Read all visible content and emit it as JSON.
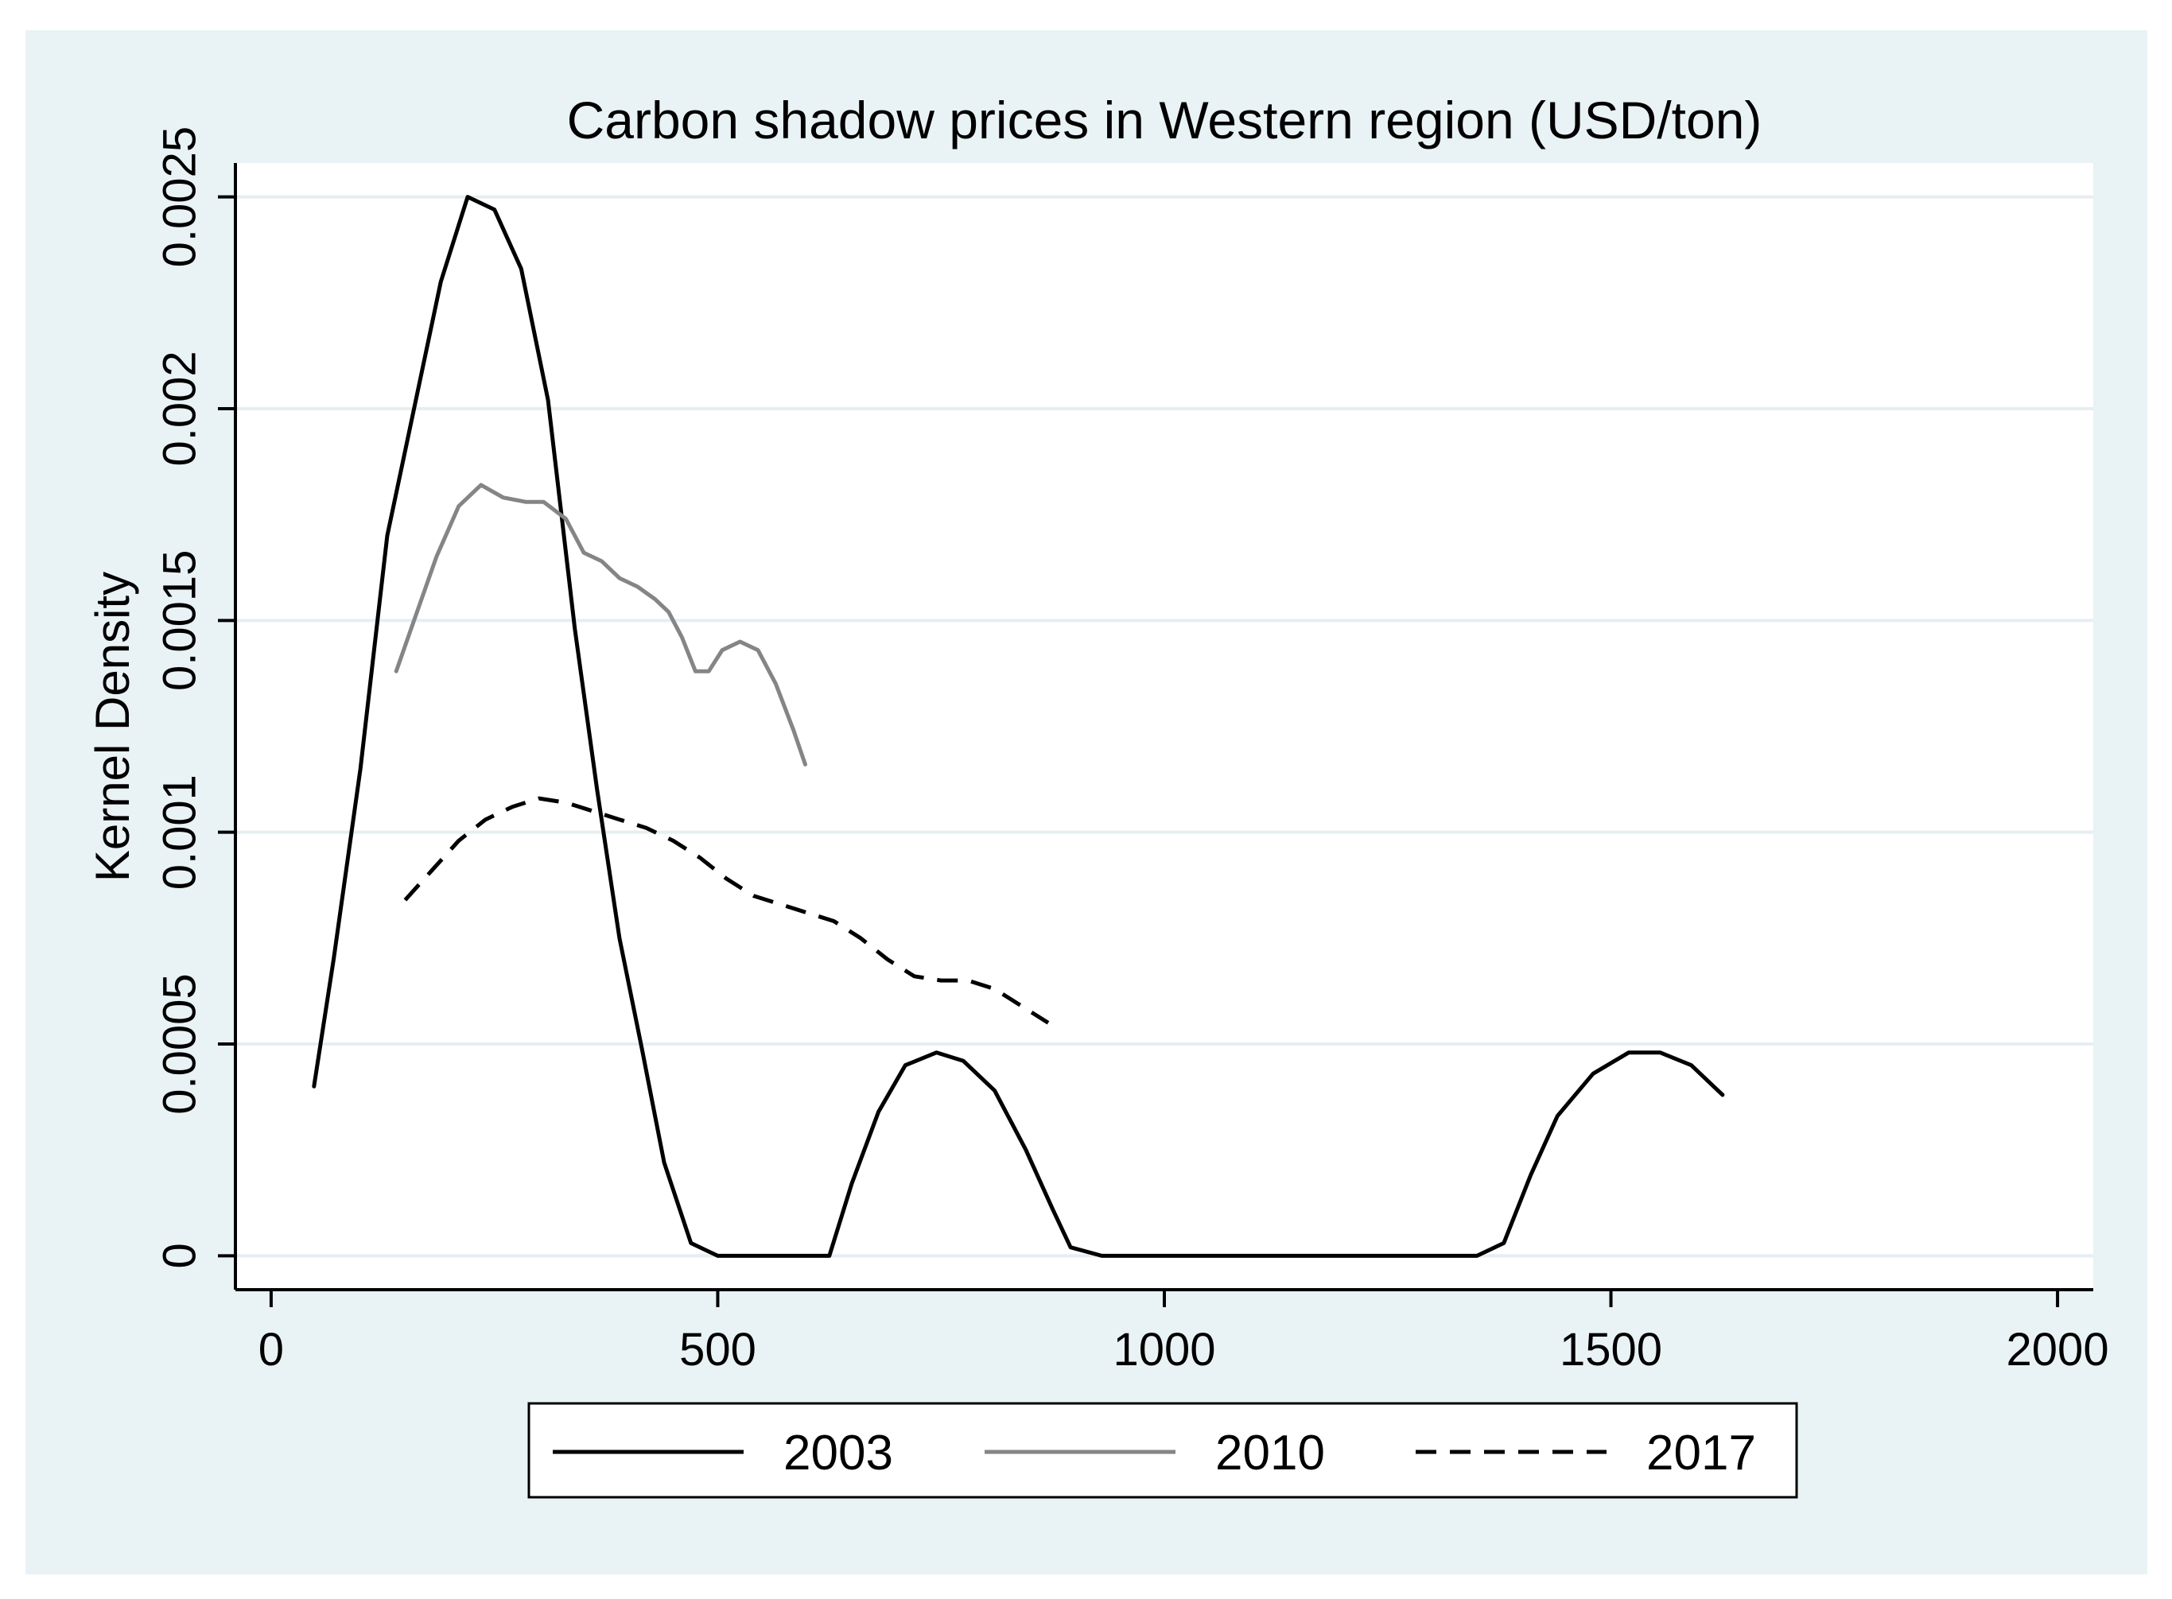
{
  "chart_data": {
    "type": "line",
    "title": "Carbon shadow prices in Western region (USD/ton)",
    "xlabel": "",
    "ylabel": "Kernel Density",
    "xlim": [
      -40,
      2040
    ],
    "ylim": [
      -8e-05,
      0.00258
    ],
    "xticks": [
      {
        "value": 0,
        "label": "0"
      },
      {
        "value": 500,
        "label": "500"
      },
      {
        "value": 1000,
        "label": "1000"
      },
      {
        "value": 1500,
        "label": "1500"
      },
      {
        "value": 2000,
        "label": "2000"
      }
    ],
    "yticks": [
      {
        "value": 0,
        "label": "0"
      },
      {
        "value": 0.0005,
        "label": "0.0005"
      },
      {
        "value": 0.001,
        "label": "0.001"
      },
      {
        "value": 0.0015,
        "label": "0.0015"
      },
      {
        "value": 0.002,
        "label": "0.002"
      },
      {
        "value": 0.0025,
        "label": "0.0025"
      }
    ],
    "grid": "horizontal",
    "legend_position": "bottom",
    "series": [
      {
        "name": "2003",
        "color": "#000000",
        "dash": "solid",
        "points": [
          [
            48,
            0.0004
          ],
          [
            70,
            0.0007
          ],
          [
            100,
            0.00115
          ],
          [
            130,
            0.0017
          ],
          [
            160,
            0.002
          ],
          [
            190,
            0.0023
          ],
          [
            220,
            0.0025
          ],
          [
            250,
            0.00247
          ],
          [
            280,
            0.00233
          ],
          [
            310,
            0.00202
          ],
          [
            340,
            0.00148
          ],
          [
            365,
            0.0011
          ],
          [
            390,
            0.00075
          ],
          [
            415,
            0.00049
          ],
          [
            440,
            0.00022
          ],
          [
            470,
            3e-05
          ],
          [
            500,
            0
          ],
          [
            540,
            0
          ],
          [
            590,
            0
          ],
          [
            625,
            0
          ],
          [
            650,
            0.00017
          ],
          [
            680,
            0.00034
          ],
          [
            710,
            0.00045
          ],
          [
            745,
            0.00048
          ],
          [
            775,
            0.00046
          ],
          [
            810,
            0.00039
          ],
          [
            845,
            0.00025
          ],
          [
            875,
            0.00011
          ],
          [
            895,
            2e-05
          ],
          [
            930,
            0
          ],
          [
            1000,
            0
          ],
          [
            1100,
            0
          ],
          [
            1200,
            0
          ],
          [
            1300,
            0
          ],
          [
            1350,
            0
          ],
          [
            1380,
            3e-05
          ],
          [
            1410,
            0.00019
          ],
          [
            1440,
            0.00033
          ],
          [
            1480,
            0.00043
          ],
          [
            1520,
            0.00048
          ],
          [
            1555,
            0.00048
          ],
          [
            1590,
            0.00045
          ],
          [
            1625,
            0.00038
          ]
        ]
      },
      {
        "name": "2010",
        "color": "#858585",
        "dash": "solid",
        "points": [
          [
            140,
            0.00138
          ],
          [
            160,
            0.0015
          ],
          [
            185,
            0.00165
          ],
          [
            210,
            0.00177
          ],
          [
            235,
            0.00182
          ],
          [
            260,
            0.00179
          ],
          [
            285,
            0.00178
          ],
          [
            305,
            0.00178
          ],
          [
            330,
            0.00174
          ],
          [
            350,
            0.00166
          ],
          [
            370,
            0.00164
          ],
          [
            390,
            0.0016
          ],
          [
            410,
            0.00158
          ],
          [
            430,
            0.00155
          ],
          [
            445,
            0.00152
          ],
          [
            460,
            0.00146
          ],
          [
            475,
            0.00138
          ],
          [
            490,
            0.00138
          ],
          [
            505,
            0.00143
          ],
          [
            525,
            0.00145
          ],
          [
            545,
            0.00143
          ],
          [
            565,
            0.00135
          ],
          [
            585,
            0.00124
          ],
          [
            598,
            0.00116
          ]
        ]
      },
      {
        "name": "2017",
        "color": "#000000",
        "dash": "dashed",
        "points": [
          [
            150,
            0.00084
          ],
          [
            180,
            0.00091
          ],
          [
            210,
            0.00098
          ],
          [
            240,
            0.00103
          ],
          [
            270,
            0.00106
          ],
          [
            300,
            0.00108
          ],
          [
            330,
            0.00107
          ],
          [
            360,
            0.00105
          ],
          [
            390,
            0.00103
          ],
          [
            420,
            0.00101
          ],
          [
            450,
            0.00098
          ],
          [
            480,
            0.00094
          ],
          [
            510,
            0.00089
          ],
          [
            540,
            0.00085
          ],
          [
            570,
            0.00083
          ],
          [
            600,
            0.00081
          ],
          [
            630,
            0.00079
          ],
          [
            660,
            0.00075
          ],
          [
            690,
            0.0007
          ],
          [
            720,
            0.00066
          ],
          [
            750,
            0.00065
          ],
          [
            780,
            0.00065
          ],
          [
            810,
            0.00063
          ],
          [
            840,
            0.00059
          ],
          [
            870,
            0.00055
          ]
        ]
      }
    ]
  }
}
